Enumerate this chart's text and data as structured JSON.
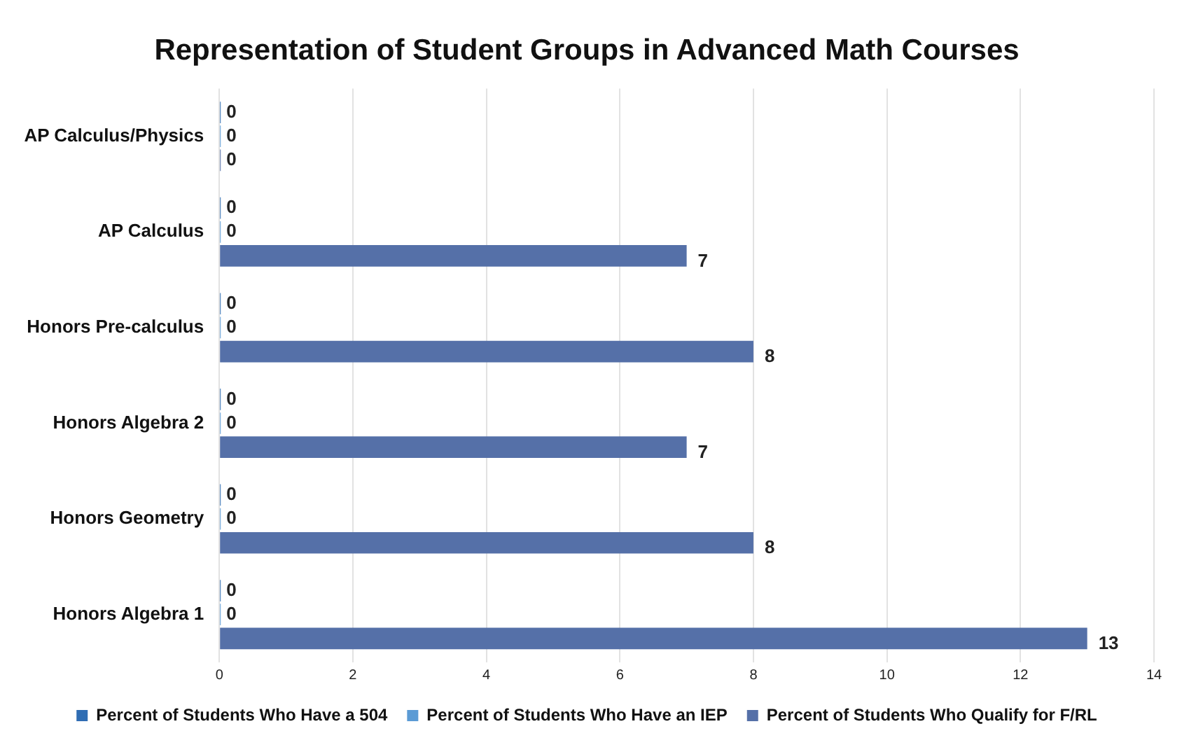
{
  "chart_data": {
    "type": "bar",
    "orientation": "horizontal",
    "title": "Representation of Student Groups in Advanced Math Courses",
    "categories": [
      "AP Calculus/Physics",
      "AP Calculus",
      "Honors Pre-calculus",
      "Honors Algebra 2",
      "Honors Geometry",
      "Honors Algebra 1"
    ],
    "series": [
      {
        "name": "Percent of Students Who Have a 504",
        "color": "#2f6db3",
        "values": [
          0,
          0,
          0,
          0,
          0,
          0
        ]
      },
      {
        "name": "Percent of Students Who Have an IEP",
        "color": "#5b9bd5",
        "values": [
          0,
          0,
          0,
          0,
          0,
          0
        ]
      },
      {
        "name": "Percent of Students Who Qualify for F/RL",
        "color": "#5570a8",
        "values": [
          0,
          7,
          8,
          7,
          8,
          13
        ]
      }
    ],
    "xlim": [
      0,
      14
    ],
    "xticks": [
      0,
      2,
      4,
      6,
      8,
      10,
      12,
      14
    ],
    "grid": "x",
    "legend": "bottom",
    "data_labels": true
  }
}
